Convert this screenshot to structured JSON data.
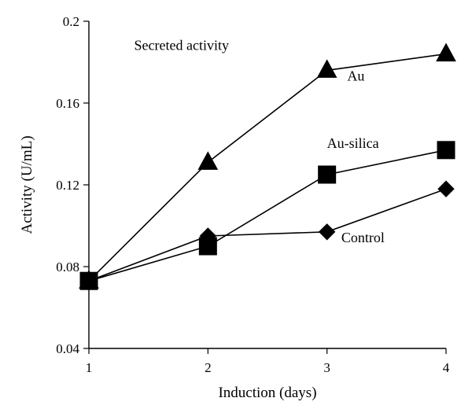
{
  "chart_data": {
    "type": "line",
    "title": "",
    "xlabel": "Induction (days)",
    "ylabel": "Activity (U/mL)",
    "xlim": [
      1,
      4
    ],
    "ylim": [
      0.04,
      0.2
    ],
    "xticks": [
      1,
      2,
      3,
      4
    ],
    "yticks": [
      0.04,
      0.08,
      0.12,
      0.16,
      0.2
    ],
    "xtick_labels": [
      "1",
      "2",
      "3",
      "4"
    ],
    "ytick_labels": [
      "0.04",
      "0.08",
      "0.12",
      "0.16",
      "0.2"
    ],
    "grid": false,
    "legend": "none",
    "annotations": [
      {
        "text": "Secreted activity",
        "x": 1.38,
        "y": 0.186
      },
      {
        "text": "Au",
        "x": 3.17,
        "y": 0.171
      },
      {
        "text": "Au-silica",
        "x": 3.0,
        "y": 0.138
      },
      {
        "text": "Control",
        "x": 3.12,
        "y": 0.092
      }
    ],
    "series": [
      {
        "label": "Au",
        "marker": "triangle",
        "x": [
          1,
          2,
          3,
          4
        ],
        "y": [
          0.073,
          0.131,
          0.176,
          0.184
        ]
      },
      {
        "label": "Au-silica",
        "marker": "square",
        "x": [
          1,
          2,
          3,
          4
        ],
        "y": [
          0.073,
          0.09,
          0.125,
          0.137
        ]
      },
      {
        "label": "Control",
        "marker": "diamond",
        "x": [
          1,
          2,
          3,
          4
        ],
        "y": [
          0.073,
          0.095,
          0.097,
          0.118
        ]
      }
    ]
  }
}
